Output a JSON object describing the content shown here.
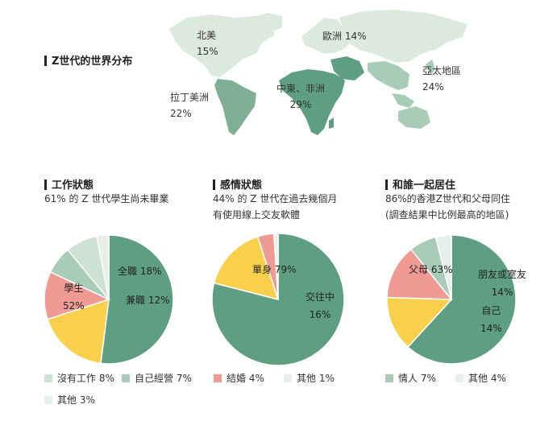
{
  "colors": {
    "green": "#5e9f83",
    "yellow": "#f8d04b",
    "pink": "#f09a94",
    "light_green": "#a8ccb8",
    "pale_green": "#cde1d5",
    "very_pale": "#e6efe9",
    "map_light": "#dbe9df",
    "map_mid": "#a8ccb8",
    "map_dark": "#6aa388"
  },
  "map": {
    "title": "Z世代的世界分布",
    "regions": [
      {
        "name": "北美",
        "pct": "15%"
      },
      {
        "name": "歐洲",
        "pct": "14%"
      },
      {
        "name": "亞太地區",
        "pct": "24%"
      },
      {
        "name": "中東、非洲",
        "pct": "29%"
      },
      {
        "name": "拉丁美洲",
        "pct": "22%"
      }
    ]
  },
  "sections": {
    "work": {
      "title": "工作狀態",
      "subtitle": [
        "61% 的 Z 世代學生尚未畢業"
      ]
    },
    "relationship": {
      "title": "感情狀態",
      "subtitle": [
        "44% 的 Z 世代在過去幾個月",
        "有使用線上交友軟體"
      ]
    },
    "living": {
      "title": "和誰一起居住",
      "subtitle": [
        "86%的香港Z世代和父母同住",
        "(調查結果中比例最高的地區)"
      ]
    }
  },
  "chart_data": [
    {
      "type": "pie",
      "title": "Z世代的世界分布",
      "labels": [
        "北美",
        "歐洲",
        "亞太地區",
        "中東、非洲",
        "拉丁美洲"
      ],
      "values": [
        15,
        14,
        24,
        29,
        22
      ]
    },
    {
      "type": "pie",
      "title": "工作狀態",
      "slices": [
        {
          "label": "學生",
          "value": 52,
          "color": "#5e9f83",
          "text": "52%"
        },
        {
          "label": "全職",
          "value": 18,
          "color": "#f8d04b",
          "text": "18%"
        },
        {
          "label": "兼職",
          "value": 12,
          "color": "#f09a94",
          "text": "12%"
        },
        {
          "label": "自己經營",
          "value": 7,
          "color": "#a8ccb8",
          "text": "7%"
        },
        {
          "label": "沒有工作",
          "value": 8,
          "color": "#cde1d5",
          "text": "8%"
        },
        {
          "label": "其他",
          "value": 3,
          "color": "#e6efe9",
          "text": "3%"
        }
      ]
    },
    {
      "type": "pie",
      "title": "感情狀態",
      "slices": [
        {
          "label": "單身",
          "value": 79,
          "color": "#5e9f83",
          "text": "79%"
        },
        {
          "label": "交往中",
          "value": 16,
          "color": "#f8d04b",
          "text": "16%"
        },
        {
          "label": "結婚",
          "value": 4,
          "color": "#f09a94",
          "text": "4%"
        },
        {
          "label": "其他",
          "value": 1,
          "color": "#e6efe9",
          "text": "1%"
        }
      ]
    },
    {
      "type": "pie",
      "title": "和誰一起居住",
      "slices": [
        {
          "label": "父母",
          "value": 63,
          "color": "#5e9f83",
          "text": "63%"
        },
        {
          "label": "朋友或室友",
          "value": 14,
          "color": "#f8d04b",
          "text": "14%"
        },
        {
          "label": "自己",
          "value": 14,
          "color": "#f09a94",
          "text": "14%"
        },
        {
          "label": "情人",
          "value": 7,
          "color": "#a8ccb8",
          "text": "7%"
        },
        {
          "label": "其他",
          "value": 4,
          "color": "#e6efe9",
          "text": "4%"
        }
      ]
    }
  ],
  "pie_labels": {
    "work": [
      {
        "name": "學生",
        "pct": "52%"
      },
      {
        "name": "全職",
        "pct": "18%"
      },
      {
        "name": "兼職",
        "pct": "12%"
      }
    ],
    "relationship": [
      {
        "name": "單身",
        "pct": "79%"
      },
      {
        "name": "交往中",
        "pct": "16%"
      }
    ],
    "living": [
      {
        "name": "父母",
        "pct": "63%"
      },
      {
        "name": "朋友或室友",
        "pct": "14%"
      },
      {
        "name": "自己",
        "pct": "14%"
      }
    ]
  },
  "legends": {
    "work": [
      "沒有工作 8%",
      "自己經營 7%",
      "其他 3%"
    ],
    "relationship": [
      "結婚 4%",
      "其他 1%"
    ],
    "living": [
      "情人 7%",
      "其他 4%"
    ]
  }
}
